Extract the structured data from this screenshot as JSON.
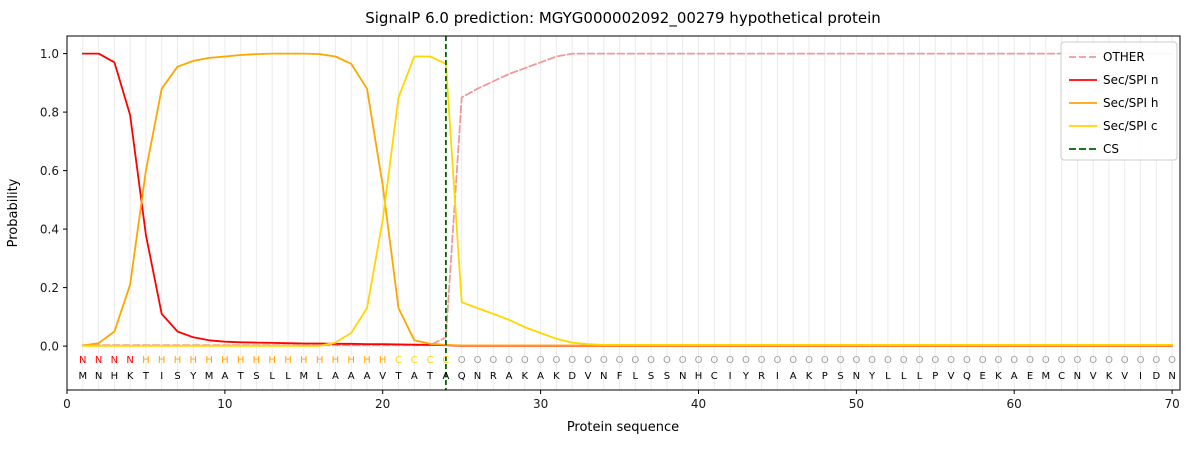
{
  "title": "SignalP 6.0 prediction: MGYG000002092_00279 hypothetical protein",
  "chart_data": {
    "type": "line",
    "title": "SignalP 6.0 prediction: MGYG000002092_00279 hypothetical protein",
    "xlabel": "Protein sequence",
    "ylabel": "Probability",
    "xlim": [
      0,
      70.5
    ],
    "ylim": [
      -0.15,
      1.06
    ],
    "xticks": [
      0,
      10,
      20,
      30,
      40,
      50,
      60,
      70
    ],
    "yticks": [
      0,
      0.2,
      0.4,
      0.6,
      0.8,
      1.0
    ],
    "grid": "faint vertical gridline at every residue position",
    "legend_position": "upper right",
    "x": [
      1,
      2,
      3,
      4,
      5,
      6,
      7,
      8,
      9,
      10,
      11,
      12,
      13,
      14,
      15,
      16,
      17,
      18,
      19,
      20,
      21,
      22,
      23,
      24,
      25,
      26,
      27,
      28,
      29,
      30,
      31,
      32,
      33,
      34,
      35,
      36,
      37,
      38,
      39,
      40,
      41,
      42,
      43,
      44,
      45,
      46,
      47,
      48,
      49,
      50,
      51,
      52,
      53,
      54,
      55,
      56,
      57,
      58,
      59,
      60,
      61,
      62,
      63,
      64,
      65,
      66,
      67,
      68,
      69,
      70
    ],
    "series": [
      {
        "name": "OTHER",
        "color": "#f19999",
        "dash": true,
        "values": [
          0.003,
          0.003,
          0.003,
          0.003,
          0.003,
          0.003,
          0.003,
          0.003,
          0.003,
          0.003,
          0.003,
          0.003,
          0.003,
          0.003,
          0.003,
          0.003,
          0.003,
          0.003,
          0.003,
          0.003,
          0.003,
          0.003,
          0.003,
          0.03,
          0.85,
          0.88,
          0.905,
          0.93,
          0.95,
          0.97,
          0.99,
          1.0,
          1.0,
          1.0,
          1.0,
          1.0,
          1.0,
          1.0,
          1.0,
          1.0,
          1.0,
          1.0,
          1.0,
          1.0,
          1.0,
          1.0,
          1.0,
          1.0,
          1.0,
          1.0,
          1.0,
          1.0,
          1.0,
          1.0,
          1.0,
          1.0,
          1.0,
          1.0,
          1.0,
          1.0,
          1.0,
          1.0,
          1.0,
          1.0,
          1.0,
          1.0,
          1.0,
          1.0,
          1.0,
          1.0
        ]
      },
      {
        "name": "Sec/SPI n",
        "color": "#ff0000",
        "dash": false,
        "values": [
          1.0,
          1.0,
          0.97,
          0.79,
          0.38,
          0.11,
          0.05,
          0.03,
          0.02,
          0.015,
          0.013,
          0.012,
          0.011,
          0.01,
          0.009,
          0.009,
          0.008,
          0.008,
          0.007,
          0.007,
          0.006,
          0.005,
          0.004,
          0.003,
          0.001,
          0.001,
          0.001,
          0.001,
          0.001,
          0.001,
          0.001,
          0.001,
          0.001,
          0.001,
          0.001,
          0.001,
          0.001,
          0.001,
          0.001,
          0.001,
          0.001,
          0.001,
          0.001,
          0.001,
          0.001,
          0.001,
          0.001,
          0.001,
          0.001,
          0.001,
          0.001,
          0.001,
          0.001,
          0.001,
          0.001,
          0.001,
          0.001,
          0.001,
          0.001,
          0.001,
          0.001,
          0.001,
          0.001,
          0.001,
          0.001,
          0.001,
          0.001,
          0.001,
          0.001,
          0.001
        ]
      },
      {
        "name": "Sec/SPI h",
        "color": "#ffa500",
        "dash": false,
        "values": [
          0.002,
          0.01,
          0.05,
          0.21,
          0.6,
          0.88,
          0.955,
          0.975,
          0.985,
          0.99,
          0.995,
          0.998,
          1.0,
          1.0,
          1.0,
          0.998,
          0.99,
          0.965,
          0.88,
          0.55,
          0.13,
          0.02,
          0.008,
          0.004,
          0.002,
          0.002,
          0.002,
          0.002,
          0.002,
          0.002,
          0.002,
          0.002,
          0.002,
          0.002,
          0.002,
          0.002,
          0.002,
          0.002,
          0.002,
          0.002,
          0.002,
          0.002,
          0.002,
          0.002,
          0.002,
          0.002,
          0.002,
          0.002,
          0.002,
          0.002,
          0.002,
          0.002,
          0.002,
          0.002,
          0.002,
          0.002,
          0.002,
          0.002,
          0.002,
          0.002,
          0.002,
          0.002,
          0.002,
          0.002,
          0.002,
          0.002,
          0.002,
          0.002,
          0.002,
          0.002
        ]
      },
      {
        "name": "Sec/SPI c",
        "color": "#ffd700",
        "dash": false,
        "values": [
          0.001,
          0.001,
          0.001,
          0.001,
          0.001,
          0.001,
          0.001,
          0.001,
          0.001,
          0.001,
          0.001,
          0.001,
          0.001,
          0.001,
          0.001,
          0.001,
          0.012,
          0.045,
          0.13,
          0.43,
          0.85,
          0.99,
          0.99,
          0.965,
          0.15,
          0.13,
          0.11,
          0.09,
          0.065,
          0.045,
          0.025,
          0.012,
          0.007,
          0.004,
          0.004,
          0.004,
          0.004,
          0.004,
          0.004,
          0.004,
          0.004,
          0.004,
          0.004,
          0.004,
          0.004,
          0.004,
          0.004,
          0.004,
          0.004,
          0.004,
          0.004,
          0.004,
          0.004,
          0.004,
          0.004,
          0.004,
          0.004,
          0.004,
          0.004,
          0.004,
          0.004,
          0.004,
          0.004,
          0.004,
          0.004,
          0.004,
          0.004,
          0.004,
          0.004,
          0.004
        ]
      }
    ],
    "cs_line": {
      "x": 24,
      "label": "CS",
      "color": "#006400",
      "dash": true
    },
    "sequence": "MNHKTISYMATSLLMLAAAVTATAQNRAKAKDVNFLSSNHCIYRIAKPSNYLLLPVQEKAEMCNVKVIDN",
    "region_labels": "NNNNHHHHHHHHHHHHHHHHCCCCOOOOOOOOOOOOOOOOOOOOOOOOOOOOOOOOOOOOOOOOOOOOOO",
    "region_colors": {
      "N": "#ff0000",
      "H": "#ffa500",
      "C": "#ffd700",
      "O": "#9e9e9e"
    },
    "legend": [
      {
        "label": "OTHER",
        "color": "#f19999",
        "dash": true
      },
      {
        "label": "Sec/SPI n",
        "color": "#ff0000",
        "dash": false
      },
      {
        "label": "Sec/SPI h",
        "color": "#ffa500",
        "dash": false
      },
      {
        "label": "Sec/SPI c",
        "color": "#ffd700",
        "dash": false
      },
      {
        "label": "CS",
        "color": "#006400",
        "dash": true
      }
    ]
  }
}
